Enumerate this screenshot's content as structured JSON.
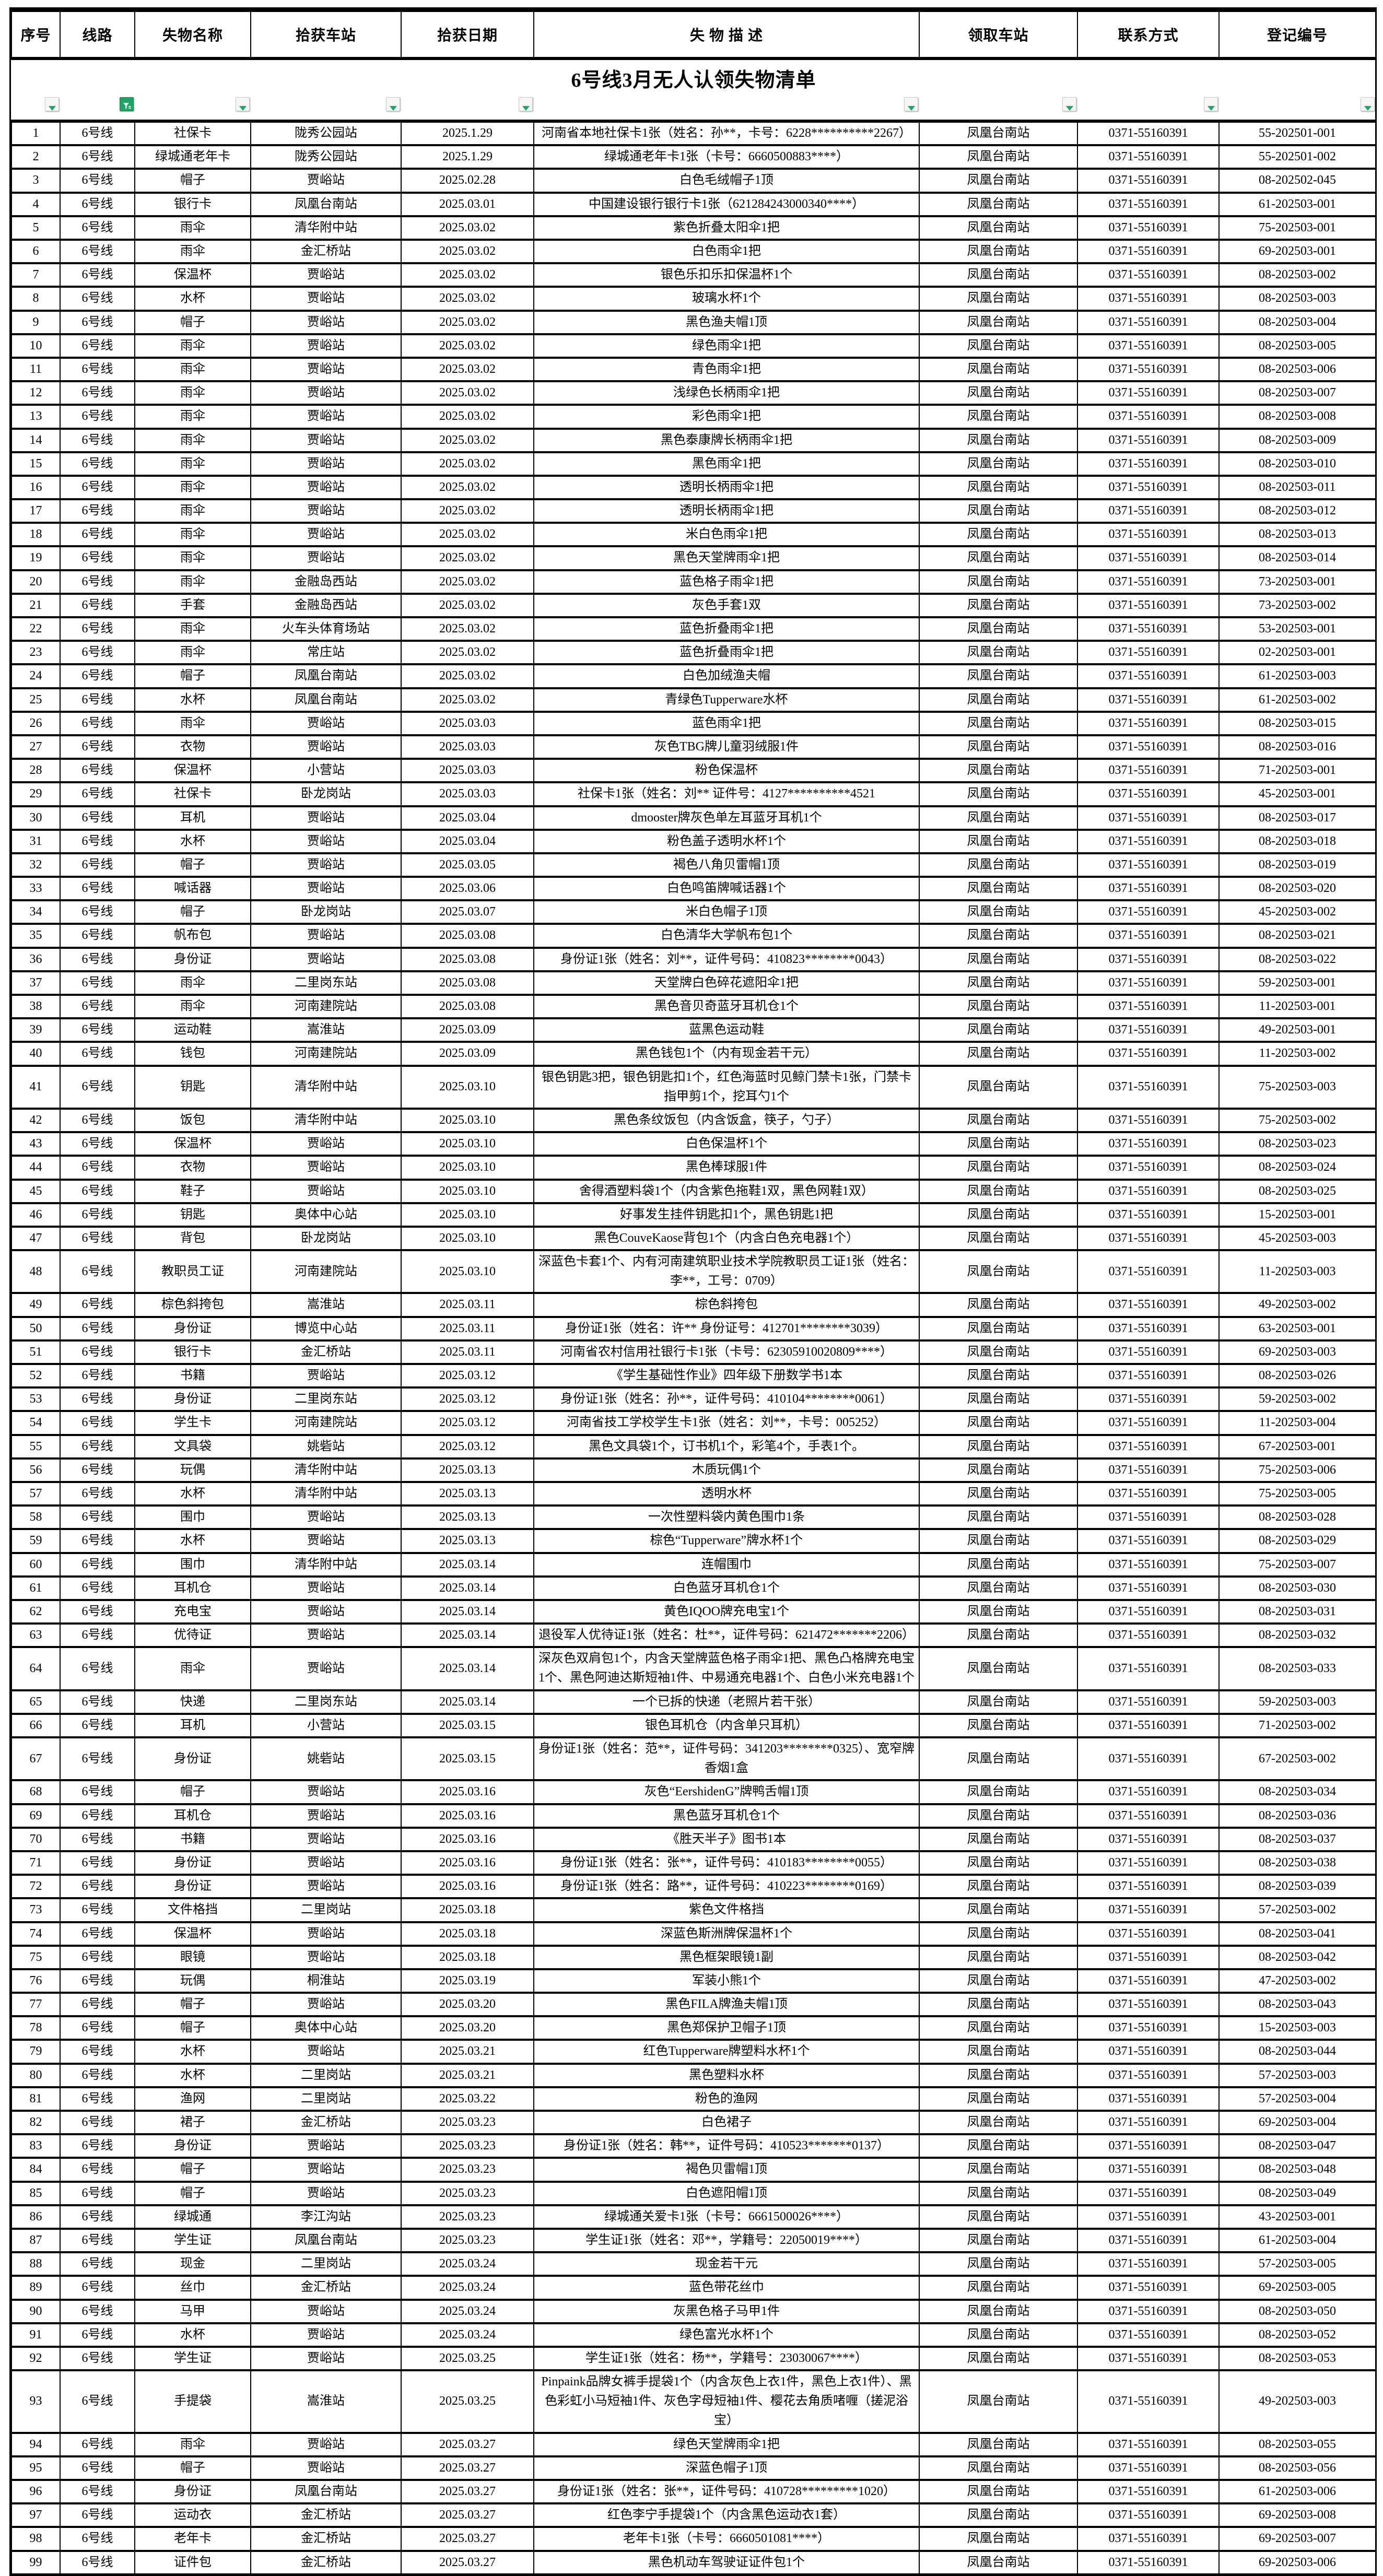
{
  "title": "6号线3月无人认领失物清单",
  "colors": {
    "filter_green": "#21a366",
    "border_black": "#000000",
    "background": "#ffffff"
  },
  "table": {
    "columns": [
      "序号",
      "线路",
      "失物名称",
      "拾获车站",
      "拾获日期",
      "失 物 描 述",
      "领取车站",
      "联系方式",
      "登记编号"
    ],
    "field_names": [
      "index",
      "line",
      "item-name",
      "found-station",
      "found-date",
      "description",
      "pickup-station",
      "contact",
      "registration-no"
    ],
    "filter": {
      "active_column_index": 1,
      "active_icon": "funnel-applied-icon",
      "inactive_icon": "dropdown-arrow-icon"
    },
    "rows": [
      [
        "1",
        "6号线",
        "社保卡",
        "陇秀公园站",
        "2025.1.29",
        "河南省本地社保卡1张（姓名：孙**，卡号：6228**********2267）",
        "凤凰台南站",
        "0371-55160391",
        "55-202501-001"
      ],
      [
        "2",
        "6号线",
        "绿城通老年卡",
        "陇秀公园站",
        "2025.1.29",
        "绿城通老年卡1张（卡号：6660500883****）",
        "凤凰台南站",
        "0371-55160391",
        "55-202501-002"
      ],
      [
        "3",
        "6号线",
        "帽子",
        "贾峪站",
        "2025.02.28",
        "白色毛绒帽子1顶",
        "凤凰台南站",
        "0371-55160391",
        "08-202502-045"
      ],
      [
        "4",
        "6号线",
        "银行卡",
        "凤凰台南站",
        "2025.03.01",
        "中国建设银行银行卡1张（621284243000340****）",
        "凤凰台南站",
        "0371-55160391",
        "61-202503-001"
      ],
      [
        "5",
        "6号线",
        "雨伞",
        "清华附中站",
        "2025.03.02",
        "紫色折叠太阳伞1把",
        "凤凰台南站",
        "0371-55160391",
        "75-202503-001"
      ],
      [
        "6",
        "6号线",
        "雨伞",
        "金汇桥站",
        "2025.03.02",
        "白色雨伞1把",
        "凤凰台南站",
        "0371-55160391",
        "69-202503-001"
      ],
      [
        "7",
        "6号线",
        "保温杯",
        "贾峪站",
        "2025.03.02",
        "银色乐扣乐扣保温杯1个",
        "凤凰台南站",
        "0371-55160391",
        "08-202503-002"
      ],
      [
        "8",
        "6号线",
        "水杯",
        "贾峪站",
        "2025.03.02",
        "玻璃水杯1个",
        "凤凰台南站",
        "0371-55160391",
        "08-202503-003"
      ],
      [
        "9",
        "6号线",
        "帽子",
        "贾峪站",
        "2025.03.02",
        "黑色渔夫帽1顶",
        "凤凰台南站",
        "0371-55160391",
        "08-202503-004"
      ],
      [
        "10",
        "6号线",
        "雨伞",
        "贾峪站",
        "2025.03.02",
        "绿色雨伞1把",
        "凤凰台南站",
        "0371-55160391",
        "08-202503-005"
      ],
      [
        "11",
        "6号线",
        "雨伞",
        "贾峪站",
        "2025.03.02",
        "青色雨伞1把",
        "凤凰台南站",
        "0371-55160391",
        "08-202503-006"
      ],
      [
        "12",
        "6号线",
        "雨伞",
        "贾峪站",
        "2025.03.02",
        "浅绿色长柄雨伞1把",
        "凤凰台南站",
        "0371-55160391",
        "08-202503-007"
      ],
      [
        "13",
        "6号线",
        "雨伞",
        "贾峪站",
        "2025.03.02",
        "彩色雨伞1把",
        "凤凰台南站",
        "0371-55160391",
        "08-202503-008"
      ],
      [
        "14",
        "6号线",
        "雨伞",
        "贾峪站",
        "2025.03.02",
        "黑色泰康牌长柄雨伞1把",
        "凤凰台南站",
        "0371-55160391",
        "08-202503-009"
      ],
      [
        "15",
        "6号线",
        "雨伞",
        "贾峪站",
        "2025.03.02",
        "黑色雨伞1把",
        "凤凰台南站",
        "0371-55160391",
        "08-202503-010"
      ],
      [
        "16",
        "6号线",
        "雨伞",
        "贾峪站",
        "2025.03.02",
        "透明长柄雨伞1把",
        "凤凰台南站",
        "0371-55160391",
        "08-202503-011"
      ],
      [
        "17",
        "6号线",
        "雨伞",
        "贾峪站",
        "2025.03.02",
        "透明长柄雨伞1把",
        "凤凰台南站",
        "0371-55160391",
        "08-202503-012"
      ],
      [
        "18",
        "6号线",
        "雨伞",
        "贾峪站",
        "2025.03.02",
        "米白色雨伞1把",
        "凤凰台南站",
        "0371-55160391",
        "08-202503-013"
      ],
      [
        "19",
        "6号线",
        "雨伞",
        "贾峪站",
        "2025.03.02",
        "黑色天堂牌雨伞1把",
        "凤凰台南站",
        "0371-55160391",
        "08-202503-014"
      ],
      [
        "20",
        "6号线",
        "雨伞",
        "金融岛西站",
        "2025.03.02",
        "蓝色格子雨伞1把",
        "凤凰台南站",
        "0371-55160391",
        "73-202503-001"
      ],
      [
        "21",
        "6号线",
        "手套",
        "金融岛西站",
        "2025.03.02",
        "灰色手套1双",
        "凤凰台南站",
        "0371-55160391",
        "73-202503-002"
      ],
      [
        "22",
        "6号线",
        "雨伞",
        "火车头体育场站",
        "2025.03.02",
        "蓝色折叠雨伞1把",
        "凤凰台南站",
        "0371-55160391",
        "53-202503-001"
      ],
      [
        "23",
        "6号线",
        "雨伞",
        "常庄站",
        "2025.03.02",
        "蓝色折叠雨伞1把",
        "凤凰台南站",
        "0371-55160391",
        "02-202503-001"
      ],
      [
        "24",
        "6号线",
        "帽子",
        "凤凰台南站",
        "2025.03.02",
        "白色加绒渔夫帽",
        "凤凰台南站",
        "0371-55160391",
        "61-202503-003"
      ],
      [
        "25",
        "6号线",
        "水杯",
        "凤凰台南站",
        "2025.03.02",
        "青绿色Tupperware水杯",
        "凤凰台南站",
        "0371-55160391",
        "61-202503-002"
      ],
      [
        "26",
        "6号线",
        "雨伞",
        "贾峪站",
        "2025.03.03",
        "蓝色雨伞1把",
        "凤凰台南站",
        "0371-55160391",
        "08-202503-015"
      ],
      [
        "27",
        "6号线",
        "衣物",
        "贾峪站",
        "2025.03.03",
        "灰色TBG牌儿童羽绒服1件",
        "凤凰台南站",
        "0371-55160391",
        "08-202503-016"
      ],
      [
        "28",
        "6号线",
        "保温杯",
        "小营站",
        "2025.03.03",
        "粉色保温杯",
        "凤凰台南站",
        "0371-55160391",
        "71-202503-001"
      ],
      [
        "29",
        "6号线",
        "社保卡",
        "卧龙岗站",
        "2025.03.03",
        "社保卡1张（姓名：刘** 证件号：4127**********4521",
        "凤凰台南站",
        "0371-55160391",
        "45-202503-001"
      ],
      [
        "30",
        "6号线",
        "耳机",
        "贾峪站",
        "2025.03.04",
        "dmooster牌灰色单左耳蓝牙耳机1个",
        "凤凰台南站",
        "0371-55160391",
        "08-202503-017"
      ],
      [
        "31",
        "6号线",
        "水杯",
        "贾峪站",
        "2025.03.04",
        "粉色盖子透明水杯1个",
        "凤凰台南站",
        "0371-55160391",
        "08-202503-018"
      ],
      [
        "32",
        "6号线",
        "帽子",
        "贾峪站",
        "2025.03.05",
        "褐色八角贝雷帽1顶",
        "凤凰台南站",
        "0371-55160391",
        "08-202503-019"
      ],
      [
        "33",
        "6号线",
        "喊话器",
        "贾峪站",
        "2025.03.06",
        "白色鸣笛牌喊话器1个",
        "凤凰台南站",
        "0371-55160391",
        "08-202503-020"
      ],
      [
        "34",
        "6号线",
        "帽子",
        "卧龙岗站",
        "2025.03.07",
        "米白色帽子1顶",
        "凤凰台南站",
        "0371-55160391",
        "45-202503-002"
      ],
      [
        "35",
        "6号线",
        "帆布包",
        "贾峪站",
        "2025.03.08",
        "白色清华大学帆布包1个",
        "凤凰台南站",
        "0371-55160391",
        "08-202503-021"
      ],
      [
        "36",
        "6号线",
        "身份证",
        "贾峪站",
        "2025.03.08",
        "身份证1张（姓名：刘**，证件号码：410823********0043）",
        "凤凰台南站",
        "0371-55160391",
        "08-202503-022"
      ],
      [
        "37",
        "6号线",
        "雨伞",
        "二里岗东站",
        "2025.03.08",
        "天堂牌白色碎花遮阳伞1把",
        "凤凰台南站",
        "0371-55160391",
        "59-202503-001"
      ],
      [
        "38",
        "6号线",
        "雨伞",
        "河南建院站",
        "2025.03.08",
        "黑色音贝奇蓝牙耳机仓1个",
        "凤凰台南站",
        "0371-55160391",
        "11-202503-001"
      ],
      [
        "39",
        "6号线",
        "运动鞋",
        "嵩淮站",
        "2025.03.09",
        "蓝黑色运动鞋",
        "凤凰台南站",
        "0371-55160391",
        "49-202503-001"
      ],
      [
        "40",
        "6号线",
        "钱包",
        "河南建院站",
        "2025.03.09",
        "黑色钱包1个（内有现金若干元）",
        "凤凰台南站",
        "0371-55160391",
        "11-202503-002"
      ],
      [
        "41",
        "6号线",
        "钥匙",
        "清华附中站",
        "2025.03.10",
        "银色钥匙3把，银色钥匙扣1个，红色海蓝时见鲸门禁卡1张，门禁卡指甲剪1个，挖耳勺1个",
        "凤凰台南站",
        "0371-55160391",
        "75-202503-003"
      ],
      [
        "42",
        "6号线",
        "饭包",
        "清华附中站",
        "2025.03.10",
        "黑色条纹饭包（内含饭盒，筷子，勺子）",
        "凤凰台南站",
        "0371-55160391",
        "75-202503-002"
      ],
      [
        "43",
        "6号线",
        "保温杯",
        "贾峪站",
        "2025.03.10",
        "白色保温杯1个",
        "凤凰台南站",
        "0371-55160391",
        "08-202503-023"
      ],
      [
        "44",
        "6号线",
        "衣物",
        "贾峪站",
        "2025.03.10",
        "黑色棒球服1件",
        "凤凰台南站",
        "0371-55160391",
        "08-202503-024"
      ],
      [
        "45",
        "6号线",
        "鞋子",
        "贾峪站",
        "2025.03.10",
        "舍得酒塑料袋1个（内含紫色拖鞋1双，黑色网鞋1双）",
        "凤凰台南站",
        "0371-55160391",
        "08-202503-025"
      ],
      [
        "46",
        "6号线",
        "钥匙",
        "奥体中心站",
        "2025.03.10",
        "好事发生挂件钥匙扣1个，黑色钥匙1把",
        "凤凰台南站",
        "0371-55160391",
        "15-202503-001"
      ],
      [
        "47",
        "6号线",
        "背包",
        "卧龙岗站",
        "2025.03.10",
        "黑色CouveKaose背包1个（内含白色充电器1个）",
        "凤凰台南站",
        "0371-55160391",
        "45-202503-003"
      ],
      [
        "48",
        "6号线",
        "教职员工证",
        "河南建院站",
        "2025.03.10",
        "深蓝色卡套1个、内有河南建筑职业技术学院教职员工证1张（姓名：李**，工号：0709）",
        "凤凰台南站",
        "0371-55160391",
        "11-202503-003"
      ],
      [
        "49",
        "6号线",
        "棕色斜挎包",
        "嵩淮站",
        "2025.03.11",
        "棕色斜挎包",
        "凤凰台南站",
        "0371-55160391",
        "49-202503-002"
      ],
      [
        "50",
        "6号线",
        "身份证",
        "博览中心站",
        "2025.03.11",
        "身份证1张（姓名：许** 身份证号：412701********3039）",
        "凤凰台南站",
        "0371-55160391",
        "63-202503-001"
      ],
      [
        "51",
        "6号线",
        "银行卡",
        "金汇桥站",
        "2025.03.11",
        "河南省农村信用社银行卡1张（卡号：62305910020809****）",
        "凤凰台南站",
        "0371-55160391",
        "69-202503-003"
      ],
      [
        "52",
        "6号线",
        "书籍",
        "贾峪站",
        "2025.03.12",
        "《学生基础性作业》四年级下册数学书1本",
        "凤凰台南站",
        "0371-55160391",
        "08-202503-026"
      ],
      [
        "53",
        "6号线",
        "身份证",
        "二里岗东站",
        "2025.03.12",
        "身份证1张（姓名：孙**，证件号码：410104********0061）",
        "凤凰台南站",
        "0371-55160391",
        "59-202503-002"
      ],
      [
        "54",
        "6号线",
        "学生卡",
        "河南建院站",
        "2025.03.12",
        "河南省技工学校学生卡1张（姓名：刘**，卡号：005252）",
        "凤凰台南站",
        "0371-55160391",
        "11-202503-004"
      ],
      [
        "55",
        "6号线",
        "文具袋",
        "姚砦站",
        "2025.03.12",
        "黑色文具袋1个，订书机1个，彩笔4个，手表1个。",
        "凤凰台南站",
        "0371-55160391",
        "67-202503-001"
      ],
      [
        "56",
        "6号线",
        "玩偶",
        "清华附中站",
        "2025.03.13",
        "木质玩偶1个",
        "凤凰台南站",
        "0371-55160391",
        "75-202503-006"
      ],
      [
        "57",
        "6号线",
        "水杯",
        "清华附中站",
        "2025.03.13",
        "透明水杯",
        "凤凰台南站",
        "0371-55160391",
        "75-202503-005"
      ],
      [
        "58",
        "6号线",
        "围巾",
        "贾峪站",
        "2025.03.13",
        "一次性塑料袋内黄色围巾1条",
        "凤凰台南站",
        "0371-55160391",
        "08-202503-028"
      ],
      [
        "59",
        "6号线",
        "水杯",
        "贾峪站",
        "2025.03.13",
        "棕色“Tupperware”牌水杯1个",
        "凤凰台南站",
        "0371-55160391",
        "08-202503-029"
      ],
      [
        "60",
        "6号线",
        "围巾",
        "清华附中站",
        "2025.03.14",
        "连帽围巾",
        "凤凰台南站",
        "0371-55160391",
        "75-202503-007"
      ],
      [
        "61",
        "6号线",
        "耳机仓",
        "贾峪站",
        "2025.03.14",
        "白色蓝牙耳机仓1个",
        "凤凰台南站",
        "0371-55160391",
        "08-202503-030"
      ],
      [
        "62",
        "6号线",
        "充电宝",
        "贾峪站",
        "2025.03.14",
        "黄色IQOO牌充电宝1个",
        "凤凰台南站",
        "0371-55160391",
        "08-202503-031"
      ],
      [
        "63",
        "6号线",
        "优待证",
        "贾峪站",
        "2025.03.14",
        "退役军人优待证1张（姓名：杜**，证件号码：621472*******2206）",
        "凤凰台南站",
        "0371-55160391",
        "08-202503-032"
      ],
      [
        "64",
        "6号线",
        "雨伞",
        "贾峪站",
        "2025.03.14",
        "深灰色双肩包1个，内含天堂牌蓝色格子雨伞1把、黑色凸格牌充电宝1个、黑色阿迪达斯短袖1件、中易通充电器1个、白色小米充电器1个",
        "凤凰台南站",
        "0371-55160391",
        "08-202503-033"
      ],
      [
        "65",
        "6号线",
        "快递",
        "二里岗东站",
        "2025.03.14",
        "一个已拆的快递（老照片若干张）",
        "凤凰台南站",
        "0371-55160391",
        "59-202503-003"
      ],
      [
        "66",
        "6号线",
        "耳机",
        "小营站",
        "2025.03.15",
        "银色耳机仓（内含单只耳机）",
        "凤凰台南站",
        "0371-55160391",
        "71-202503-002"
      ],
      [
        "67",
        "6号线",
        "身份证",
        "姚砦站",
        "2025.03.15",
        "身份证1张（姓名：范**，证件号码：341203********0325）、宽窄牌香烟1盒",
        "凤凰台南站",
        "0371-55160391",
        "67-202503-002"
      ],
      [
        "68",
        "6号线",
        "帽子",
        "贾峪站",
        "2025.03.16",
        "灰色“EershidenG”牌鸭舌帽1顶",
        "凤凰台南站",
        "0371-55160391",
        "08-202503-034"
      ],
      [
        "69",
        "6号线",
        "耳机仓",
        "贾峪站",
        "2025.03.16",
        "黑色蓝牙耳机仓1个",
        "凤凰台南站",
        "0371-55160391",
        "08-202503-036"
      ],
      [
        "70",
        "6号线",
        "书籍",
        "贾峪站",
        "2025.03.16",
        "《胜天半子》图书1本",
        "凤凰台南站",
        "0371-55160391",
        "08-202503-037"
      ],
      [
        "71",
        "6号线",
        "身份证",
        "贾峪站",
        "2025.03.16",
        "身份证1张（姓名：张**，证件号码：410183********0055）",
        "凤凰台南站",
        "0371-55160391",
        "08-202503-038"
      ],
      [
        "72",
        "6号线",
        "身份证",
        "贾峪站",
        "2025.03.16",
        "身份证1张（姓名：路**，证件号码：410223********0169）",
        "凤凰台南站",
        "0371-55160391",
        "08-202503-039"
      ],
      [
        "73",
        "6号线",
        "文件格挡",
        "二里岗站",
        "2025.03.18",
        "紫色文件格挡",
        "凤凰台南站",
        "0371-55160391",
        "57-202503-002"
      ],
      [
        "74",
        "6号线",
        "保温杯",
        "贾峪站",
        "2025.03.18",
        "深蓝色斯洲牌保温杯1个",
        "凤凰台南站",
        "0371-55160391",
        "08-202503-041"
      ],
      [
        "75",
        "6号线",
        "眼镜",
        "贾峪站",
        "2025.03.18",
        "黑色框架眼镜1副",
        "凤凰台南站",
        "0371-55160391",
        "08-202503-042"
      ],
      [
        "76",
        "6号线",
        "玩偶",
        "桐淮站",
        "2025.03.19",
        "军装小熊1个",
        "凤凰台南站",
        "0371-55160391",
        "47-202503-002"
      ],
      [
        "77",
        "6号线",
        "帽子",
        "贾峪站",
        "2025.03.20",
        "黑色FILA牌渔夫帽1顶",
        "凤凰台南站",
        "0371-55160391",
        "08-202503-043"
      ],
      [
        "78",
        "6号线",
        "帽子",
        "奥体中心站",
        "2025.03.20",
        "黑色郑保护卫帽子1顶",
        "凤凰台南站",
        "0371-55160391",
        "15-202503-003"
      ],
      [
        "79",
        "6号线",
        "水杯",
        "贾峪站",
        "2025.03.21",
        "红色Tupperware牌塑料水杯1个",
        "凤凰台南站",
        "0371-55160391",
        "08-202503-044"
      ],
      [
        "80",
        "6号线",
        "水杯",
        "二里岗站",
        "2025.03.21",
        "黑色塑料水杯",
        "凤凰台南站",
        "0371-55160391",
        "57-202503-003"
      ],
      [
        "81",
        "6号线",
        "渔网",
        "二里岗站",
        "2025.03.22",
        "粉色的渔网",
        "凤凰台南站",
        "0371-55160391",
        "57-202503-004"
      ],
      [
        "82",
        "6号线",
        "裙子",
        "金汇桥站",
        "2025.03.23",
        "白色裙子",
        "凤凰台南站",
        "0371-55160391",
        "69-202503-004"
      ],
      [
        "83",
        "6号线",
        "身份证",
        "贾峪站",
        "2025.03.23",
        "身份证1张（姓名：韩**，证件号码：410523*******0137）",
        "凤凰台南站",
        "0371-55160391",
        "08-202503-047"
      ],
      [
        "84",
        "6号线",
        "帽子",
        "贾峪站",
        "2025.03.23",
        "褐色贝雷帽1顶",
        "凤凰台南站",
        "0371-55160391",
        "08-202503-048"
      ],
      [
        "85",
        "6号线",
        "帽子",
        "贾峪站",
        "2025.03.23",
        "白色遮阳帽1顶",
        "凤凰台南站",
        "0371-55160391",
        "08-202503-049"
      ],
      [
        "86",
        "6号线",
        "绿城通",
        "李江沟站",
        "2025.03.23",
        "绿城通关爱卡1张（卡号：6661500026****）",
        "凤凰台南站",
        "0371-55160391",
        "43-202503-001"
      ],
      [
        "87",
        "6号线",
        "学生证",
        "凤凰台南站",
        "2025.03.23",
        "学生证1张（姓名：邓**，学籍号：22050019****）",
        "凤凰台南站",
        "0371-55160391",
        "61-202503-004"
      ],
      [
        "88",
        "6号线",
        "现金",
        "二里岗站",
        "2025.03.24",
        "现金若干元",
        "凤凰台南站",
        "0371-55160391",
        "57-202503-005"
      ],
      [
        "89",
        "6号线",
        "丝巾",
        "金汇桥站",
        "2025.03.24",
        "蓝色带花丝巾",
        "凤凰台南站",
        "0371-55160391",
        "69-202503-005"
      ],
      [
        "90",
        "6号线",
        "马甲",
        "贾峪站",
        "2025.03.24",
        "灰黑色格子马甲1件",
        "凤凰台南站",
        "0371-55160391",
        "08-202503-050"
      ],
      [
        "91",
        "6号线",
        "水杯",
        "贾峪站",
        "2025.03.24",
        "绿色富光水杯1个",
        "凤凰台南站",
        "0371-55160391",
        "08-202503-052"
      ],
      [
        "92",
        "6号线",
        "学生证",
        "贾峪站",
        "2025.03.25",
        "学生证1张（姓名：杨**，学籍号：23030067****）",
        "凤凰台南站",
        "0371-55160391",
        "08-202503-053"
      ],
      [
        "93",
        "6号线",
        "手提袋",
        "嵩淮站",
        "2025.03.25",
        "Pinpaink品牌女裤手提袋1个（内含灰色上衣1件，黑色上衣1件）、黑色彩虹小马短袖1件、灰色字母短袖1件、樱花去角质啫喱（搓泥浴宝）",
        "凤凰台南站",
        "0371-55160391",
        "49-202503-003"
      ],
      [
        "94",
        "6号线",
        "雨伞",
        "贾峪站",
        "2025.03.27",
        "绿色天堂牌雨伞1把",
        "凤凰台南站",
        "0371-55160391",
        "08-202503-055"
      ],
      [
        "95",
        "6号线",
        "帽子",
        "贾峪站",
        "2025.03.27",
        "深蓝色帽子1顶",
        "凤凰台南站",
        "0371-55160391",
        "08-202503-056"
      ],
      [
        "96",
        "6号线",
        "身份证",
        "凤凰台南站",
        "2025.03.27",
        "身份证1张（姓名：张**，证件号码：410728*********1020）",
        "凤凰台南站",
        "0371-55160391",
        "61-202503-006"
      ],
      [
        "97",
        "6号线",
        "运动衣",
        "金汇桥站",
        "2025.03.27",
        "红色李宁手提袋1个（内含黑色运动衣1套）",
        "凤凰台南站",
        "0371-55160391",
        "69-202503-008"
      ],
      [
        "98",
        "6号线",
        "老年卡",
        "金汇桥站",
        "2025.03.27",
        "老年卡1张（卡号：6660501081****）",
        "凤凰台南站",
        "0371-55160391",
        "69-202503-007"
      ],
      [
        "99",
        "6号线",
        "证件包",
        "金汇桥站",
        "2025.03.27",
        "黑色机动车驾驶证证件包1个",
        "凤凰台南站",
        "0371-55160391",
        "69-202503-006"
      ]
    ]
  }
}
